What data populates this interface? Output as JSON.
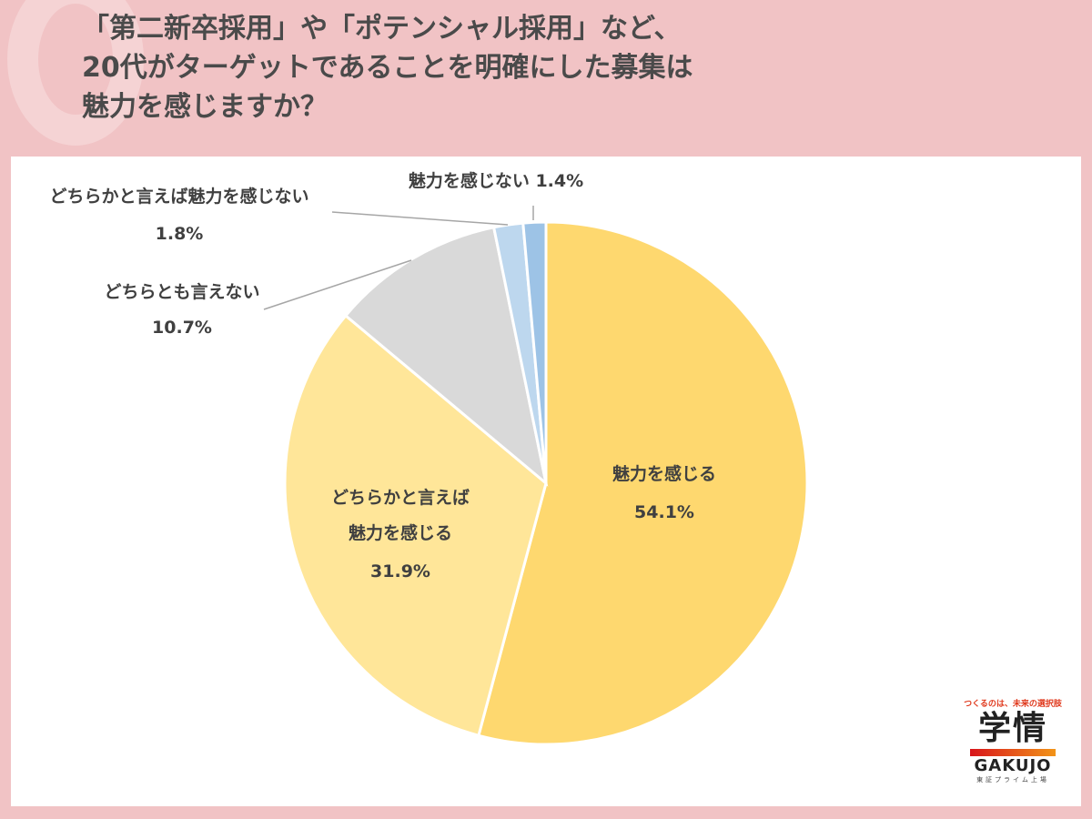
{
  "title_lines": [
    "「第二新卒採用」や「ポテンシャル採用」など、",
    "20代がターゲットであることを明確にした募集は",
    "魅力を感じますか？"
  ],
  "chart_data": {
    "type": "pie",
    "title": "「第二新卒採用」や「ポテンシャル採用」など、20代がターゲットであることを明確にした募集は魅力を感じますか？",
    "start": "top",
    "direction": "clockwise",
    "slices": [
      {
        "label": "魅力を感じる",
        "value": 54.1,
        "display": "54.1%",
        "color": "#fed86f"
      },
      {
        "label": "どちらかと言えば魅力を感じる",
        "value": 31.9,
        "display": "31.9%",
        "color": "#ffe699"
      },
      {
        "label": "どちらとも言えない",
        "value": 10.7,
        "display": "10.7%",
        "color": "#d9d9d9"
      },
      {
        "label": "どちらかと言えば魅力を感じない",
        "value": 1.8,
        "display": "1.8%",
        "color": "#bdd7ee"
      },
      {
        "label": "魅力を感じない",
        "value": 1.4,
        "display": "1.4%",
        "color": "#9dc3e6"
      }
    ]
  },
  "labels": {
    "s0": [
      "魅力を感じる",
      "54.1%"
    ],
    "s1": [
      "どちらかと言えば",
      "魅力を感じる",
      "31.9%"
    ],
    "s2": [
      "どちらとも言えない",
      "10.7%"
    ],
    "s3": [
      "どちらかと言えば魅力を感じない",
      "1.8%"
    ],
    "s4": "魅力を感じない 1.4%"
  },
  "logo": {
    "tagline": "つくるのは、未来の選択肢",
    "kanji": "学情",
    "name": "GAKUJO",
    "sub": "東証プライム上場"
  }
}
